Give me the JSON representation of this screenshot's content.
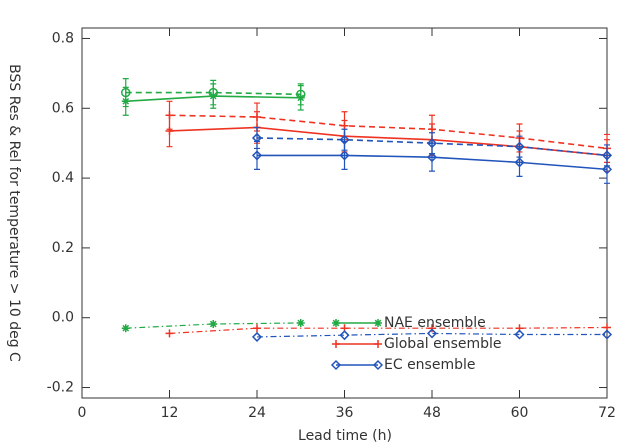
{
  "chart_data": {
    "type": "line",
    "xlabel": "Lead time (h)",
    "ylabel": "BSS Res & Rel for temperature > 10 deg C",
    "xlim": [
      0,
      72
    ],
    "xticks": [
      0,
      12,
      24,
      36,
      48,
      60,
      72
    ],
    "ylim": [
      -0.23,
      0.83
    ],
    "yticks": [
      -0.2,
      {
        "value": 0,
        "label": "0.0"
      },
      0.2,
      0.4,
      0.6,
      0.8
    ],
    "legend": "lower center",
    "series": [
      {
        "color": "#22aa44",
        "dash": "solid",
        "marker": "asterisk",
        "x": [
          6,
          18,
          30
        ],
        "values": [
          0.62,
          0.635,
          0.63
        ],
        "errors": [
          0.04,
          0.035,
          0.035
        ]
      },
      {
        "color": "#22aa44",
        "dash": "dashed",
        "marker": "circle",
        "x": [
          6,
          18,
          30
        ],
        "values": [
          0.645,
          0.645,
          0.64
        ],
        "errors": [
          0.04,
          0.035,
          0.03
        ]
      },
      {
        "color": "#ee3322",
        "dash": "solid",
        "marker": "plus",
        "x": [
          12,
          24,
          36,
          48,
          60,
          72
        ],
        "values": [
          0.535,
          0.545,
          0.52,
          0.51,
          0.49,
          0.465
        ],
        "errors": [
          0.045,
          0.045,
          0.045,
          0.045,
          0.045,
          0.045
        ]
      },
      {
        "color": "#ee3322",
        "dash": "dashed",
        "marker": "plus",
        "x": [
          12,
          24,
          36,
          48,
          60,
          72
        ],
        "values": [
          0.58,
          0.575,
          0.55,
          0.54,
          0.515,
          0.485
        ],
        "errors": [
          0.04,
          0.04,
          0.04,
          0.04,
          0.04,
          0.04
        ]
      },
      {
        "color": "#2255bb",
        "dash": "solid",
        "marker": "diamond",
        "x": [
          24,
          36,
          48,
          60,
          72
        ],
        "values": [
          0.465,
          0.465,
          0.46,
          0.445,
          0.425
        ],
        "errors": [
          0.04,
          0.04,
          0.04,
          0.04,
          0.04
        ]
      },
      {
        "color": "#2255bb",
        "dash": "dashed",
        "marker": "diamond",
        "x": [
          24,
          36,
          48,
          60,
          72
        ],
        "values": [
          0.515,
          0.51,
          0.5,
          0.49,
          0.465
        ],
        "errors": [
          0.03,
          0.03,
          0.03,
          0.03,
          0.03
        ]
      },
      {
        "name": "NAE ensemble",
        "color": "#22aa44",
        "dash": "dashdot",
        "marker": "asterisk",
        "x": [
          6,
          18,
          30
        ],
        "values": [
          -0.03,
          -0.018,
          -0.015
        ]
      },
      {
        "name": "Global ensemble",
        "color": "#ee3322",
        "dash": "dashdot",
        "marker": "plus",
        "x": [
          12,
          24,
          36,
          48,
          60,
          72
        ],
        "values": [
          -0.045,
          -0.03,
          -0.03,
          -0.03,
          -0.03,
          -0.028
        ]
      },
      {
        "name": "EC ensemble",
        "color": "#2255bb",
        "dash": "dashdot",
        "marker": "diamond",
        "x": [
          24,
          36,
          48,
          60,
          72
        ],
        "values": [
          -0.055,
          -0.05,
          -0.045,
          -0.048,
          -0.048
        ]
      }
    ]
  }
}
